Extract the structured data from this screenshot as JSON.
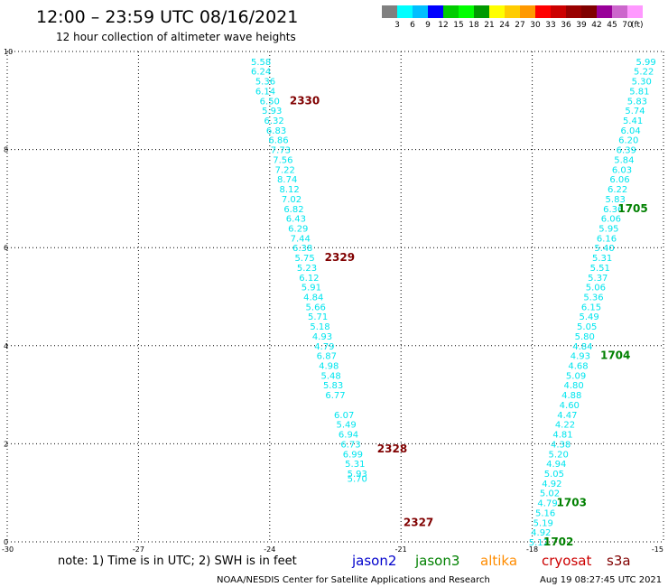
{
  "header": {
    "title": "12:00 – 23:59 UTC 08/16/2021",
    "subtitle": "12 hour collection of altimeter wave heights"
  },
  "colors": {
    "wave_text": "#00e5ee",
    "jason2": "#0000cc",
    "jason3": "#008000",
    "altika": "#ff8c00",
    "cryosat": "#cc0000",
    "s3a": "#800000"
  },
  "scale_bar": {
    "labels": [
      "3",
      "6",
      "9",
      "12",
      "15",
      "18",
      "21",
      "24",
      "27",
      "30",
      "33",
      "36",
      "39",
      "42",
      "45",
      "70"
    ],
    "unit": "(ft)",
    "colors": [
      "#808080",
      "#00ffff",
      "#00bfff",
      "#0000ff",
      "#00cc00",
      "#00ff00",
      "#009900",
      "#ffff00",
      "#ffcc00",
      "#ff9900",
      "#ff0000",
      "#cc0000",
      "#990000",
      "#800000",
      "#990099",
      "#cc66cc",
      "#ff99ff"
    ]
  },
  "chart_data": {
    "type": "scatter",
    "xlim": [
      -30,
      -15
    ],
    "ylim": [
      0,
      10
    ],
    "x_ticks": [
      "-30",
      "-27",
      "-24",
      "-21",
      "-18",
      "-15"
    ],
    "y_ticks": [
      "0",
      "2",
      "4",
      "6",
      "8",
      "10"
    ],
    "grid": true,
    "tracks": [
      {
        "satellite": "s3a",
        "points": [
          [
            -24.2,
            9.8,
            "5.58"
          ],
          [
            -24.2,
            9.6,
            "6.24"
          ],
          [
            -24.1,
            9.4,
            "5.36"
          ],
          [
            -24.1,
            9.2,
            "6.14"
          ],
          [
            -24.0,
            9.0,
            "6.50"
          ],
          [
            -23.95,
            8.8,
            "5.93"
          ],
          [
            -23.9,
            8.6,
            "6.32"
          ],
          [
            -23.85,
            8.4,
            "6.83"
          ],
          [
            -23.8,
            8.2,
            "6.86"
          ],
          [
            -23.75,
            8.0,
            "7.73"
          ],
          [
            -23.7,
            7.8,
            "7.56"
          ],
          [
            -23.65,
            7.6,
            "7.22"
          ],
          [
            -23.6,
            7.4,
            "8.74"
          ],
          [
            -23.55,
            7.2,
            "8.12"
          ],
          [
            -23.5,
            7.0,
            "7.02"
          ],
          [
            -23.45,
            6.8,
            "6.82"
          ],
          [
            -23.4,
            6.6,
            "6.43"
          ],
          [
            -23.35,
            6.4,
            "6.29"
          ],
          [
            -23.3,
            6.2,
            "7.44"
          ],
          [
            -23.25,
            6.0,
            "6.38"
          ],
          [
            -23.2,
            5.8,
            "5.75"
          ],
          [
            -23.15,
            5.6,
            "5.23"
          ],
          [
            -23.1,
            5.4,
            "6.12"
          ],
          [
            -23.05,
            5.2,
            "5.91"
          ],
          [
            -23.0,
            5.0,
            "4.84"
          ],
          [
            -22.95,
            4.8,
            "5.66"
          ],
          [
            -22.9,
            4.6,
            "5.71"
          ],
          [
            -22.85,
            4.4,
            "5.18"
          ],
          [
            -22.8,
            4.2,
            "4.93"
          ],
          [
            -22.75,
            4.0,
            "4.79"
          ],
          [
            -22.7,
            3.8,
            "6.87"
          ],
          [
            -22.65,
            3.6,
            "4.98"
          ],
          [
            -22.6,
            3.4,
            "5.48"
          ],
          [
            -22.55,
            3.2,
            "5.83"
          ],
          [
            -22.5,
            3.0,
            "6.77"
          ],
          [
            -22.3,
            2.6,
            "6.07"
          ],
          [
            -22.25,
            2.4,
            "5.49"
          ],
          [
            -22.2,
            2.2,
            "6.94"
          ],
          [
            -22.15,
            2.0,
            "6.73"
          ],
          [
            -22.1,
            1.8,
            "6.99"
          ],
          [
            -22.05,
            1.6,
            "5.31"
          ],
          [
            -22.0,
            1.4,
            "5.93"
          ],
          [
            -22.0,
            1.3,
            "5.70"
          ]
        ],
        "pass_labels": [
          [
            -23.2,
            9.0,
            "2330"
          ],
          [
            -22.4,
            5.8,
            "2329"
          ],
          [
            -21.2,
            1.9,
            "2328"
          ],
          [
            -20.6,
            0.4,
            "2327"
          ]
        ]
      },
      {
        "satellite": "jason3",
        "points": [
          [
            -15.4,
            9.8,
            "5.99"
          ],
          [
            -15.45,
            9.6,
            "5.22"
          ],
          [
            -15.5,
            9.4,
            "5.30"
          ],
          [
            -15.55,
            9.2,
            "5.81"
          ],
          [
            -15.6,
            9.0,
            "5.83"
          ],
          [
            -15.65,
            8.8,
            "5.74"
          ],
          [
            -15.7,
            8.6,
            "5.41"
          ],
          [
            -15.75,
            8.4,
            "6.04"
          ],
          [
            -15.8,
            8.2,
            "6.20"
          ],
          [
            -15.85,
            8.0,
            "6.39"
          ],
          [
            -15.9,
            7.8,
            "5.84"
          ],
          [
            -15.95,
            7.6,
            "6.03"
          ],
          [
            -16.0,
            7.4,
            "6.06"
          ],
          [
            -16.05,
            7.2,
            "6.22"
          ],
          [
            -16.1,
            7.0,
            "5.83"
          ],
          [
            -16.15,
            6.8,
            "6.36"
          ],
          [
            -16.2,
            6.6,
            "6.06"
          ],
          [
            -16.25,
            6.4,
            "5.95"
          ],
          [
            -16.3,
            6.2,
            "6.16"
          ],
          [
            -16.35,
            6.0,
            "5.40"
          ],
          [
            -16.4,
            5.8,
            "5.31"
          ],
          [
            -16.45,
            5.6,
            "5.51"
          ],
          [
            -16.5,
            5.4,
            "5.37"
          ],
          [
            -16.55,
            5.2,
            "5.06"
          ],
          [
            -16.6,
            5.0,
            "5.36"
          ],
          [
            -16.65,
            4.8,
            "6.15"
          ],
          [
            -16.7,
            4.6,
            "5.49"
          ],
          [
            -16.75,
            4.4,
            "5.05"
          ],
          [
            -16.8,
            4.2,
            "5.80"
          ],
          [
            -16.85,
            4.0,
            "4.84"
          ],
          [
            -16.9,
            3.8,
            "4.93"
          ],
          [
            -16.95,
            3.6,
            "4.68"
          ],
          [
            -17.0,
            3.4,
            "5.09"
          ],
          [
            -17.05,
            3.2,
            "4.80"
          ],
          [
            -17.1,
            3.0,
            "4.88"
          ],
          [
            -17.15,
            2.8,
            "4.60"
          ],
          [
            -17.2,
            2.6,
            "4.47"
          ],
          [
            -17.25,
            2.4,
            "4.22"
          ],
          [
            -17.3,
            2.2,
            "4.81"
          ],
          [
            -17.35,
            2.0,
            "4.38"
          ],
          [
            -17.4,
            1.8,
            "5.20"
          ],
          [
            -17.45,
            1.6,
            "4.94"
          ],
          [
            -17.5,
            1.4,
            "5.05"
          ],
          [
            -17.55,
            1.2,
            "4.92"
          ],
          [
            -17.6,
            1.0,
            "5.02"
          ],
          [
            -17.65,
            0.8,
            "4.79"
          ],
          [
            -17.7,
            0.6,
            "5.16"
          ],
          [
            -17.75,
            0.4,
            "5.19"
          ],
          [
            -17.8,
            0.2,
            "4.92"
          ],
          [
            -17.85,
            0.0,
            "5.12"
          ]
        ],
        "pass_labels": [
          [
            -15.7,
            6.8,
            "1705"
          ],
          [
            -16.1,
            3.8,
            "1704"
          ],
          [
            -17.1,
            0.8,
            "1703"
          ],
          [
            -17.4,
            0.0,
            "1702"
          ]
        ]
      }
    ]
  },
  "note": "note: 1) Time is in UTC; 2) SWH is in feet",
  "legend": [
    {
      "name": "jason2",
      "color_key": "jason2"
    },
    {
      "name": "jason3",
      "color_key": "jason3"
    },
    {
      "name": "altika",
      "color_key": "altika"
    },
    {
      "name": "cryosat",
      "color_key": "cryosat"
    },
    {
      "name": "s3a",
      "color_key": "s3a"
    }
  ],
  "footer": {
    "credit": "NOAA/NESDIS Center for Satellite Applications and Research",
    "timestamp": "Aug 19 08:27:45 UTC 2021"
  }
}
